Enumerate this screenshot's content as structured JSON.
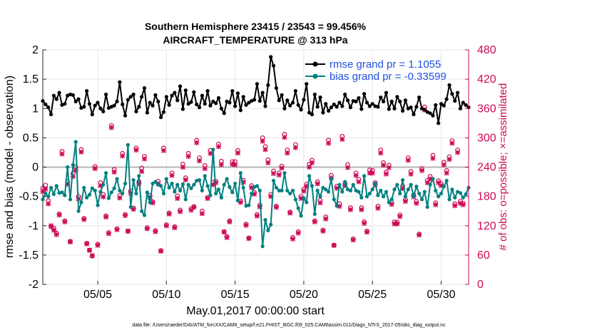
{
  "chart_data": {
    "type": "line",
    "title": "Southern Hemisphere 23415 / 23543 = 99.456%",
    "subtitle": "AIRCRAFT_TEMPERATURE @ 313 hPa",
    "xlabel": "May.01,2017 00:00:00 start",
    "ylabel": "rmse and bias (model - observation)",
    "ylabel_right": "# of obs: o=possible; ×=assimilated",
    "xlim": [
      1,
      32
    ],
    "ylim": [
      -2,
      2
    ],
    "ylim_right": [
      0,
      480
    ],
    "x_ticks": [
      5,
      10,
      15,
      20,
      25,
      30
    ],
    "x_tick_labels": [
      "05/05",
      "05/10",
      "05/15",
      "05/20",
      "05/25",
      "05/30"
    ],
    "y_ticks": [
      -2,
      -1.5,
      -1,
      -0.5,
      0,
      0.5,
      1,
      1.5,
      2
    ],
    "y_tick_labels": [
      "-2",
      "-1.5",
      "-1",
      "-0.5",
      "0",
      "0.5",
      "1",
      "1.5",
      "2"
    ],
    "y_right_ticks": [
      0,
      60,
      120,
      180,
      240,
      300,
      360,
      420,
      480
    ],
    "y_right_tick_labels": [
      "0",
      "60",
      "120",
      "180",
      "240",
      "300",
      "360",
      "420",
      "480"
    ],
    "zero_line": 0,
    "series": [
      {
        "name": "rmse grand pr = 1.1055",
        "color": "#000000",
        "values": [
          1.13,
          1.07,
          1.02,
          0.9,
          1.22,
          1.16,
          1.27,
          1.06,
          1.08,
          1.22,
          1.24,
          1.23,
          1.12,
          1.16,
          1.01,
          1.03,
          1.3,
          1.08,
          0.9,
          1.05,
          1.1,
          1.0,
          0.95,
          1.24,
          1.01,
          1.03,
          1.05,
          1.12,
          1.45,
          1.07,
          0.88,
          1.15,
          1.2,
          1.24,
          0.95,
          1.03,
          1.2,
          1.35,
          0.93,
          1.1,
          1.05,
          1.23,
          1.12,
          0.85,
          0.94,
          1.2,
          1.06,
          1.22,
          1.27,
          1.14,
          1.38,
          0.99,
          1.31,
          1.08,
          1.11,
          1.28,
          1.07,
          1.02,
          1.22,
          1.08,
          1.3,
          1.05,
          1.12,
          1.09,
          1.18,
          1.0,
          0.92,
          1.12,
          1.1,
          1.3,
          1.04,
          1.26,
          0.97,
          1.2,
          1.06,
          1.1,
          1.13,
          1.15,
          1.42,
          1.13,
          1.27,
          1.04,
          1.4,
          1.88,
          1.73,
          1.35,
          1.14,
          1.23,
          1.0,
          1.14,
          1.05,
          1.1,
          1.3,
          1.06,
          0.98,
          1.15,
          1.42,
          0.93,
          0.9,
          1.24,
          1.03,
          1.19,
          0.93,
          1.08,
          0.96,
          1.02,
          1.07,
          1.03,
          1.1,
          1.04,
          1.24,
          1.14,
          1.02,
          1.13,
          1.12,
          1.18,
          0.99,
          1.25,
          1.1,
          1.04,
          1.08,
          1.04,
          1.03,
          1.19,
          1.12,
          1.27,
          0.99,
          1.12,
          1.0,
          1.2,
          1.12,
          0.96,
          1.14,
          1.0,
          1.02,
          0.9,
          1.03,
          1.19,
          1.0,
          0.98,
          0.94,
          0.92,
          0.88,
          1.06,
          0.75,
          1.08,
          1.05,
          1.16,
          1.4,
          1.25,
          1.13,
          1.27,
          1.0,
          1.1,
          1.06,
          1.02
        ]
      },
      {
        "name": "bias grand pr = -0.33599",
        "color": "#008080",
        "values": [
          -0.55,
          -0.45,
          -0.5,
          -0.35,
          -0.46,
          -0.32,
          -0.44,
          -0.43,
          -0.48,
          0.0,
          -0.55,
          0.04,
          0.43,
          -0.75,
          -0.6,
          -0.35,
          -0.52,
          -0.47,
          -0.36,
          -0.4,
          -0.65,
          -0.42,
          -0.3,
          -0.1,
          -0.53,
          -0.43,
          -0.36,
          -0.2,
          -0.4,
          -0.45,
          -0.28,
          0.38,
          -0.68,
          -0.22,
          -0.45,
          -0.15,
          -0.75,
          -0.82,
          -0.43,
          -0.6,
          -0.28,
          -0.25,
          -0.3,
          -0.32,
          -0.45,
          -0.2,
          -0.35,
          -0.28,
          -0.42,
          -0.3,
          -0.4,
          -0.29,
          -0.55,
          -0.3,
          -0.36,
          -0.3,
          -0.23,
          -0.22,
          -0.4,
          -0.15,
          -0.32,
          -0.48,
          0.3,
          -0.45,
          -0.38,
          -0.52,
          -0.3,
          -0.2,
          -0.34,
          -0.43,
          -0.28,
          -0.57,
          -0.1,
          -0.35,
          -0.66,
          -0.65,
          -0.45,
          -0.34,
          -0.32,
          -0.4,
          -1.35,
          -0.9,
          -1.08,
          -0.98,
          -0.23,
          -0.35,
          -0.4,
          -0.4,
          -0.1,
          -0.4,
          -0.45,
          -0.4,
          -0.55,
          -0.7,
          -0.83,
          -0.53,
          -0.6,
          -0.15,
          -0.32,
          -0.8,
          -0.4,
          -0.5,
          -0.35,
          -0.38,
          -0.42,
          -0.2,
          -0.55,
          -0.66,
          -0.3,
          -0.42,
          -0.25,
          -0.38,
          -0.4,
          -0.3,
          -0.4,
          -0.42,
          -0.52,
          -0.15,
          -0.5,
          -0.45,
          -0.38,
          -0.28,
          -0.48,
          -0.4,
          -0.5,
          -0.42,
          -0.6,
          -0.55,
          -0.38,
          -0.3,
          -0.45,
          -0.22,
          -0.5,
          -0.38,
          -0.3,
          -0.5,
          -0.33,
          -0.45,
          -0.55,
          -0.42,
          -0.68,
          -0.3,
          -0.2,
          -0.4,
          -0.5,
          -0.45,
          -0.33,
          -0.23,
          -0.55,
          -0.38,
          -0.52,
          -0.42,
          -0.44,
          -0.52,
          -0.46,
          -0.35
        ]
      }
    ],
    "obs_assimilated": [
      190,
      195,
      165,
      120,
      111,
      102,
      142,
      267,
      128,
      205,
      87,
      221,
      234,
      175,
      271,
      133,
      83,
      70,
      59,
      237,
      80,
      202,
      179,
      138,
      104,
      321,
      230,
      112,
      177,
      263,
      141,
      109,
      187,
      154,
      275,
      206,
      231,
      257,
      114,
      178,
      167,
      108,
      206,
      68,
      274,
      120,
      144,
      223,
      116,
      176,
      149,
      240,
      214,
      262,
      152,
      158,
      290,
      253,
      145,
      237,
      176,
      268,
      204,
      208,
      282,
      245,
      107,
      96,
      128,
      246,
      245,
      269,
      168,
      209,
      121,
      94,
      198,
      185,
      140,
      159,
      293,
      276,
      249,
      180,
      227,
      158,
      224,
      238,
      301,
      269,
      146,
      93,
      280,
      105,
      176,
      191,
      201,
      240,
      249,
      128,
      206,
      167,
      109,
      134,
      289,
      218,
      80,
      197,
      160,
      297,
      202,
      239,
      153,
      91,
      223,
      210,
      153,
      125,
      107,
      228,
      228,
      204,
      156,
      269,
      244,
      226,
      239,
      164,
      124,
      124,
      139,
      196,
      170,
      254,
      226,
      179,
      166,
      101,
      233,
      357,
      208,
      216,
      258,
      163,
      208,
      202,
      245,
      228,
      256,
      289,
      161,
      270,
      166,
      163
    ],
    "obs_possible": [
      197,
      203,
      171,
      118,
      115,
      105,
      144,
      272,
      130,
      210,
      88,
      227,
      240,
      180,
      276,
      135,
      84,
      70,
      58,
      241,
      82,
      208,
      184,
      140,
      106,
      325,
      235,
      114,
      182,
      268,
      143,
      109,
      191,
      156,
      279,
      210,
      238,
      262,
      116,
      182,
      169,
      110,
      211,
      69,
      279,
      122,
      146,
      228,
      118,
      181,
      152,
      246,
      218,
      268,
      155,
      159,
      295,
      259,
      150,
      243,
      178,
      274,
      209,
      211,
      287,
      252,
      108,
      98,
      130,
      251,
      251,
      274,
      171,
      213,
      123,
      95,
      202,
      188,
      143,
      162,
      300,
      282,
      255,
      184,
      232,
      160,
      228,
      242,
      307,
      275,
      148,
      96,
      286,
      108,
      180,
      195,
      205,
      246,
      254,
      130,
      210,
      172,
      111,
      138,
      295,
      223,
      80,
      201,
      165,
      303,
      206,
      245,
      157,
      93,
      228,
      215,
      157,
      128,
      109,
      234,
      233,
      208,
      160,
      275,
      249,
      230,
      244,
      168,
      128,
      127,
      142,
      201,
      173,
      259,
      231,
      183,
      170,
      103,
      237,
      363,
      213,
      221,
      264,
      167,
      212,
      206,
      250,
      233,
      261,
      294,
      165,
      275,
      170,
      166
    ],
    "legend": {
      "position": "top-right",
      "entries": [
        "rmse grand pr = 1.1055",
        "bias grand pr = -0.33599"
      ]
    },
    "footnote": "data file: /Users/raeder/DAI/ATM_forcXX/CAM6_setup/f.e21.FHIST_BGC.f09_025.CAM6assim.011/Diags_NTrS_2017-05/obs_diag_output.nc"
  },
  "colors": {
    "rmse": "#000000",
    "bias": "#008080",
    "obs": "#cc0a55",
    "zero_line": "#b4b4b4",
    "legend_text": "#1f4fe0"
  }
}
